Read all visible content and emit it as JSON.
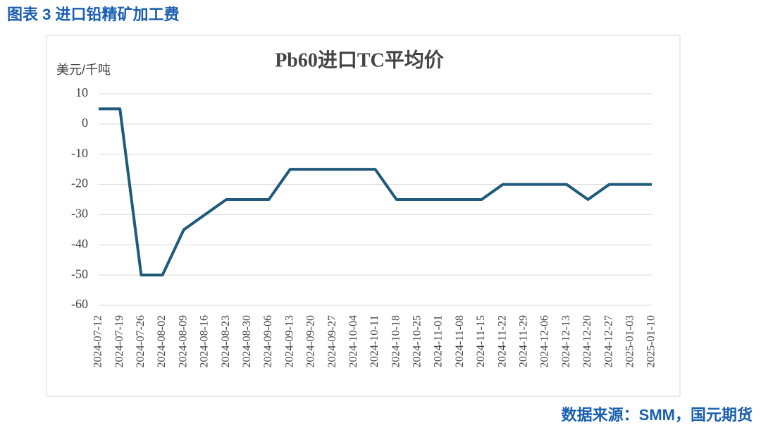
{
  "header": {
    "title": "图表 3 进口铅精矿加工费"
  },
  "chart_data": {
    "type": "line",
    "title": "Pb60进口TC平均价",
    "y_label": "美元/千吨",
    "categories": [
      "2024-07-12",
      "2024-07-19",
      "2024-07-26",
      "2024-08-02",
      "2024-08-09",
      "2024-08-16",
      "2024-08-23",
      "2024-08-30",
      "2024-09-06",
      "2024-09-13",
      "2024-09-20",
      "2024-09-27",
      "2024-10-04",
      "2024-10-11",
      "2024-10-18",
      "2024-10-25",
      "2024-11-01",
      "2024-11-08",
      "2024-11-15",
      "2024-11-22",
      "2024-11-29",
      "2024-12-06",
      "2024-12-13",
      "2024-12-20",
      "2024-12-27",
      "2025-01-03",
      "2025-01-10"
    ],
    "values": [
      5,
      5,
      -50,
      -50,
      -35,
      -30,
      -25,
      -25,
      -25,
      -15,
      -15,
      -15,
      -15,
      -15,
      -25,
      -25,
      -25,
      -25,
      -25,
      -20,
      -20,
      -20,
      -20,
      -25,
      -20,
      -20,
      -20
    ],
    "color": "#1f5a7a",
    "ylim": [
      -60,
      10
    ],
    "yticks": [
      10,
      0,
      -10,
      -20,
      -30,
      -40,
      -50,
      -60
    ],
    "grid": true
  },
  "source": "数据来源：SMM，国元期货"
}
